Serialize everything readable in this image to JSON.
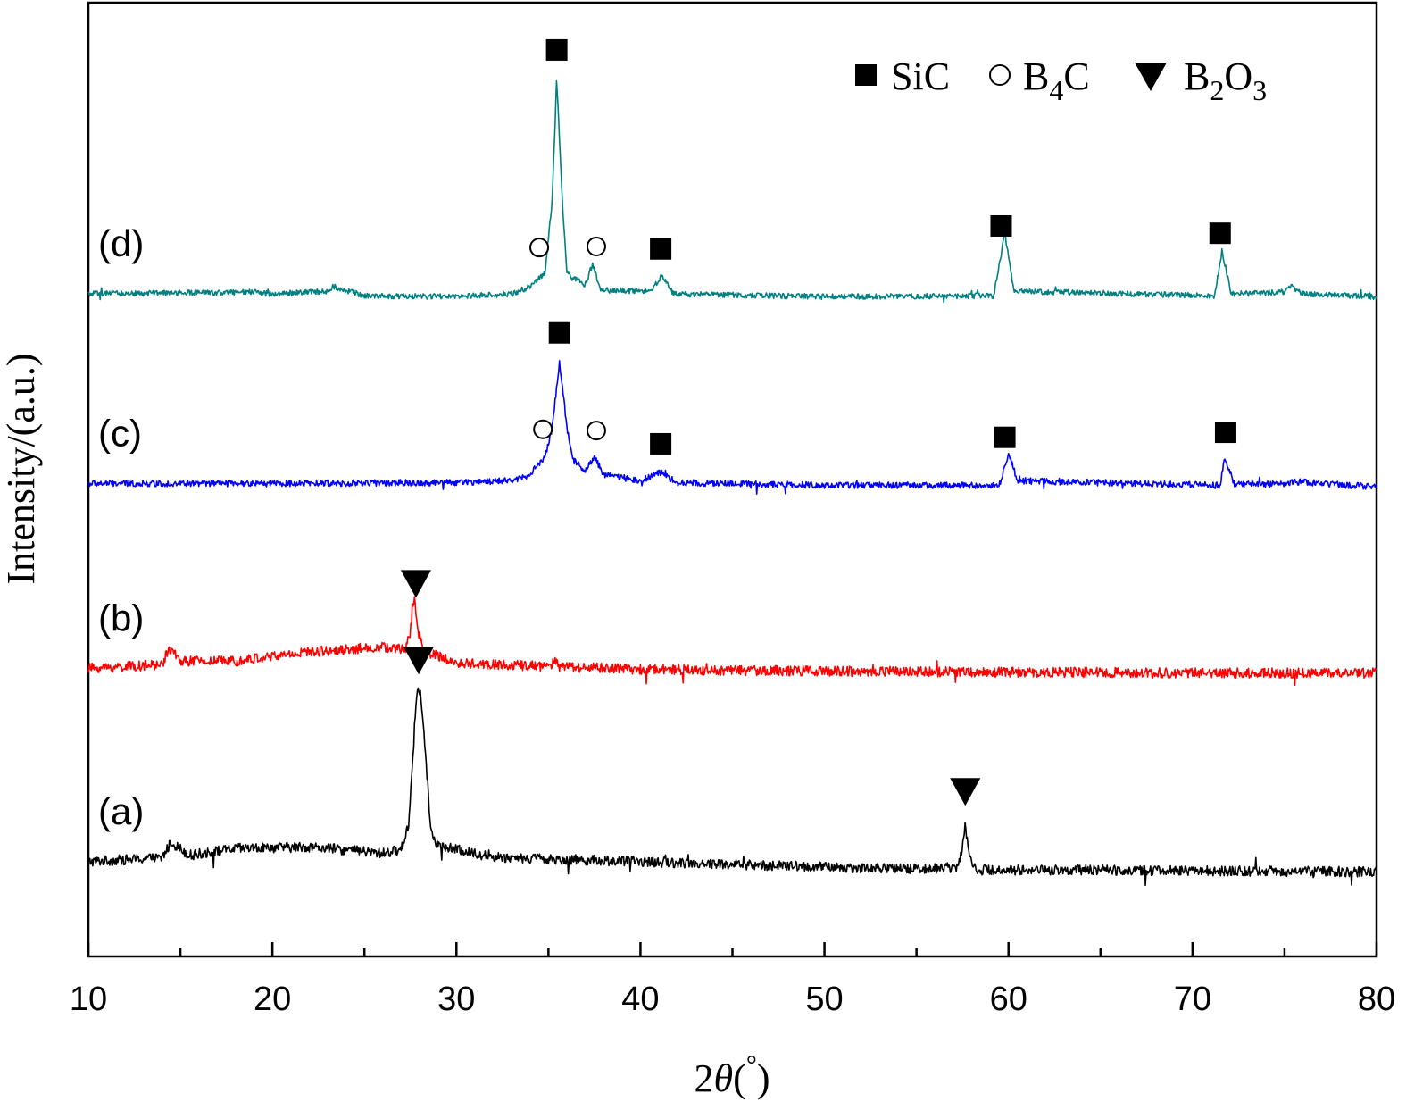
{
  "chart_data": {
    "type": "line",
    "xlabel": "2θ(°)",
    "ylabel": "Intensity/(a.u.)",
    "xlim": [
      10,
      80
    ],
    "x_ticks": [
      10,
      20,
      30,
      40,
      50,
      60,
      70,
      80
    ],
    "x_minor_step": 5,
    "y_ticks_shown": false,
    "grid": false,
    "legend": {
      "position": "top-right",
      "entries": [
        {
          "marker": "filled-square",
          "label": "SiC"
        },
        {
          "marker": "open-circle",
          "label": "B4C",
          "base": "B",
          "sub": "4",
          "tail": "C"
        },
        {
          "marker": "filled-triangle-down",
          "label": "B2O3",
          "base": "B",
          "sub": "2",
          "mid": "O",
          "sub2": "3"
        }
      ]
    },
    "series": [
      {
        "name": "(a)",
        "color": "#000000",
        "offset": 0,
        "baseline_points": [
          [
            10,
            0.5
          ],
          [
            14,
            0.9
          ],
          [
            14.5,
            2.6
          ],
          [
            15.5,
            1.2
          ],
          [
            18,
            1.9
          ],
          [
            22,
            2.1
          ],
          [
            26,
            1.4
          ],
          [
            27,
            1.8
          ],
          [
            27.4,
            4.5
          ],
          [
            27.7,
            14
          ],
          [
            27.85,
            19
          ],
          [
            28.05,
            19
          ],
          [
            28.3,
            13
          ],
          [
            28.6,
            4
          ],
          [
            29,
            2.2
          ],
          [
            30,
            1.8
          ],
          [
            32,
            1.0
          ],
          [
            35,
            0.8
          ],
          [
            40,
            0.5
          ],
          [
            45,
            0.2
          ],
          [
            50,
            -0.1
          ],
          [
            55,
            -0.3
          ],
          [
            57.2,
            -0.1
          ],
          [
            57.45,
            1.5
          ],
          [
            57.65,
            4.8
          ],
          [
            57.85,
            1.2
          ],
          [
            58.3,
            -0.4
          ],
          [
            65,
            -0.4
          ],
          [
            70,
            -0.5
          ],
          [
            80,
            -0.6
          ]
        ],
        "noise": 0.55
      },
      {
        "name": "(b)",
        "color": "#ff0000",
        "offset": 21.4,
        "baseline_points": [
          [
            10,
            0
          ],
          [
            14,
            0.4
          ],
          [
            14.4,
            2.2
          ],
          [
            15,
            0.8
          ],
          [
            18,
            0.8
          ],
          [
            22,
            1.8
          ],
          [
            26,
            2.3
          ],
          [
            27.2,
            2.0
          ],
          [
            27.5,
            4.0
          ],
          [
            27.7,
            7.8
          ],
          [
            27.9,
            4.0
          ],
          [
            28.3,
            1.8
          ],
          [
            30,
            0.6
          ],
          [
            35,
            0.2
          ],
          [
            35.3,
            0.7
          ],
          [
            35.6,
            0.2
          ],
          [
            40,
            -0.1
          ],
          [
            50,
            -0.3
          ],
          [
            60,
            -0.4
          ],
          [
            70,
            -0.5
          ],
          [
            80,
            -0.5
          ]
        ],
        "noise": 0.55
      },
      {
        "name": "(c)",
        "color": "#0000ff",
        "offset": 41.4,
        "baseline_points": [
          [
            10,
            0
          ],
          [
            20,
            0
          ],
          [
            30,
            0.1
          ],
          [
            33,
            0.3
          ],
          [
            34,
            1.0
          ],
          [
            34.8,
            2.8
          ],
          [
            35.2,
            6
          ],
          [
            35.6,
            13.2
          ],
          [
            36,
            6.2
          ],
          [
            36.3,
            2.6
          ],
          [
            37,
            1.4
          ],
          [
            37.5,
            2.8
          ],
          [
            38,
            1.0
          ],
          [
            40,
            0.3
          ],
          [
            41.1,
            1.2
          ],
          [
            42,
            0.1
          ],
          [
            50,
            -0.2
          ],
          [
            59.5,
            -0.2
          ],
          [
            60,
            3.3
          ],
          [
            60.5,
            0.3
          ],
          [
            71.5,
            -0.2
          ],
          [
            71.75,
            2.7
          ],
          [
            72.3,
            -0.1
          ],
          [
            75,
            0
          ],
          [
            75.6,
            0.2
          ],
          [
            80,
            -0.4
          ]
        ],
        "noise": 0.35
      },
      {
        "name": "(d)",
        "color": "#008080",
        "offset": 61.9,
        "baseline_points": [
          [
            10,
            0
          ],
          [
            19,
            0.2
          ],
          [
            20,
            0.0
          ],
          [
            23,
            0.3
          ],
          [
            23.3,
            0.8
          ],
          [
            25,
            -0.2
          ],
          [
            30,
            -0.3
          ],
          [
            33,
            0
          ],
          [
            34,
            0.8
          ],
          [
            34.8,
            2.3
          ],
          [
            35.2,
            10
          ],
          [
            35.45,
            23.3
          ],
          [
            35.75,
            10
          ],
          [
            36,
            2.3
          ],
          [
            37,
            0.9
          ],
          [
            37.4,
            3.3
          ],
          [
            37.8,
            0.4
          ],
          [
            40.5,
            0.3
          ],
          [
            41.15,
            1.9
          ],
          [
            41.8,
            0
          ],
          [
            50,
            -0.3
          ],
          [
            59.2,
            -0.2
          ],
          [
            59.8,
            6.5
          ],
          [
            60.3,
            0.3
          ],
          [
            71.2,
            -0.2
          ],
          [
            71.6,
            4.7
          ],
          [
            72.1,
            0.0
          ],
          [
            75,
            0.2
          ],
          [
            75.4,
            0.8
          ],
          [
            76,
            0
          ],
          [
            80,
            -0.3
          ]
        ],
        "noise": 0.3
      }
    ],
    "annotations": [
      {
        "series": "(a)",
        "x": 27.95,
        "marker": "filled-triangle-down",
        "label": "B2O3"
      },
      {
        "series": "(a)",
        "x": 57.65,
        "marker": "filled-triangle-down",
        "label": "B2O3"
      },
      {
        "series": "(b)",
        "x": 27.8,
        "marker": "filled-triangle-down",
        "label": "B2O3"
      },
      {
        "series": "(c)",
        "x": 35.6,
        "marker": "filled-square",
        "label": "SiC"
      },
      {
        "series": "(c)",
        "x": 34.7,
        "marker": "open-circle",
        "label": "B4C"
      },
      {
        "series": "(c)",
        "x": 37.6,
        "marker": "open-circle",
        "label": "B4C"
      },
      {
        "series": "(c)",
        "x": 41.1,
        "marker": "filled-square",
        "label": "SiC"
      },
      {
        "series": "(c)",
        "x": 59.8,
        "marker": "filled-square",
        "label": "SiC"
      },
      {
        "series": "(c)",
        "x": 71.8,
        "marker": "filled-square",
        "label": "SiC"
      },
      {
        "series": "(d)",
        "x": 35.45,
        "marker": "filled-square",
        "label": "SiC"
      },
      {
        "series": "(d)",
        "x": 34.5,
        "marker": "open-circle",
        "label": "B4C"
      },
      {
        "series": "(d)",
        "x": 37.6,
        "marker": "open-circle",
        "label": "B4C"
      },
      {
        "series": "(d)",
        "x": 41.1,
        "marker": "filled-square",
        "label": "SiC"
      },
      {
        "series": "(d)",
        "x": 59.6,
        "marker": "filled-square",
        "label": "SiC"
      },
      {
        "series": "(d)",
        "x": 71.5,
        "marker": "filled-square",
        "label": "SiC"
      }
    ]
  }
}
